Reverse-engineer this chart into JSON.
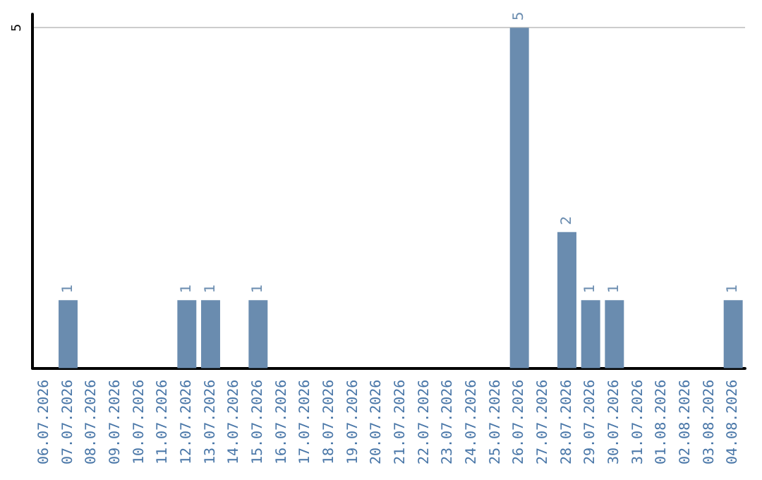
{
  "chart_data": {
    "type": "bar",
    "categories": [
      "06.07.2026",
      "07.07.2026",
      "08.07.2026",
      "09.07.2026",
      "10.07.2026",
      "11.07.2026",
      "12.07.2026",
      "13.07.2026",
      "14.07.2026",
      "15.07.2026",
      "16.07.2026",
      "17.07.2026",
      "18.07.2026",
      "19.07.2026",
      "20.07.2026",
      "21.07.2026",
      "22.07.2026",
      "23.07.2026",
      "24.07.2026",
      "25.07.2026",
      "26.07.2026",
      "27.07.2026",
      "28.07.2026",
      "29.07.2026",
      "30.07.2026",
      "31.07.2026",
      "01.08.2026",
      "02.08.2026",
      "03.08.2026",
      "04.08.2026"
    ],
    "values": [
      0,
      1,
      0,
      0,
      0,
      0,
      1,
      1,
      0,
      1,
      0,
      0,
      0,
      0,
      0,
      0,
      0,
      0,
      0,
      0,
      5,
      0,
      2,
      1,
      1,
      0,
      0,
      0,
      0,
      1
    ],
    "value_labels": [
      null,
      "1",
      null,
      null,
      null,
      null,
      "1",
      "1",
      null,
      "1",
      null,
      null,
      null,
      null,
      null,
      null,
      null,
      null,
      null,
      null,
      "5",
      null,
      "2",
      "1",
      "1",
      null,
      null,
      null,
      null,
      "1"
    ],
    "color": "#6a8caf",
    "ylim": [
      0,
      5.2
    ],
    "yticks": [
      5
    ],
    "grid": "y"
  }
}
